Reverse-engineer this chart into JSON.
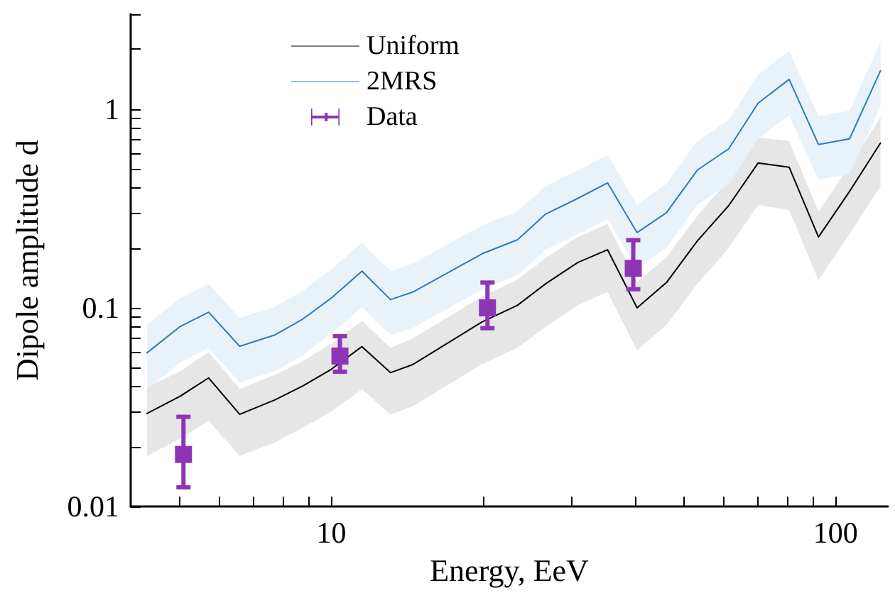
{
  "chart_data": {
    "type": "line",
    "xlabel": "Energy, EeV",
    "ylabel": "Dipole amplitude d",
    "log": "xy",
    "xlim": [
      4,
      127
    ],
    "ylim": [
      0.01,
      3
    ],
    "xticks": [
      {
        "value": 5,
        "label": null
      },
      {
        "value": 6,
        "label": null
      },
      {
        "value": 7,
        "label": null
      },
      {
        "value": 8,
        "label": null
      },
      {
        "value": 9,
        "label": null
      },
      10,
      {
        "value": 20,
        "label": null
      },
      {
        "value": 30,
        "label": null
      },
      {
        "value": 40,
        "label": null
      },
      {
        "value": 50,
        "label": null
      },
      {
        "value": 60,
        "label": null
      },
      {
        "value": 70,
        "label": null
      },
      {
        "value": 80,
        "label": null
      },
      {
        "value": 90,
        "label": null
      },
      100
    ],
    "yticks": [
      0.01,
      {
        "value": 0.02,
        "label": null
      },
      {
        "value": 0.03,
        "label": null
      },
      {
        "value": 0.04,
        "label": null
      },
      {
        "value": 0.05,
        "label": null
      },
      {
        "value": 0.06,
        "label": null
      },
      {
        "value": 0.07,
        "label": null
      },
      {
        "value": 0.08,
        "label": null
      },
      {
        "value": 0.09,
        "label": null
      },
      0.1,
      {
        "value": 0.2,
        "label": null
      },
      {
        "value": 0.3,
        "label": null
      },
      {
        "value": 0.4,
        "label": null
      },
      {
        "value": 0.5,
        "label": null
      },
      {
        "value": 0.6,
        "label": null
      },
      {
        "value": 0.7,
        "label": null
      },
      {
        "value": 0.8,
        "label": null
      },
      {
        "value": 0.9,
        "label": null
      },
      1,
      {
        "value": 2,
        "label": null
      },
      {
        "value": 3,
        "label": null
      }
    ],
    "x": [
      4.31,
      5.02,
      5.71,
      6.58,
      7.72,
      8.79,
      10,
      11.5,
      13.1,
      14.5,
      19.9,
      23.4,
      26.6,
      30.8,
      35.3,
      40.4,
      46.2,
      53.2,
      61.4,
      70.2,
      80.9,
      92.5,
      106.6,
      122.8
    ],
    "grid": false,
    "legend": "top left",
    "marker": "none",
    "line_style": "solid",
    "series": [
      {
        "name": "Uniform",
        "color": "#000000",
        "values": [
          0.0294,
          0.036,
          0.0444,
          0.0291,
          0.0344,
          0.0405,
          0.0491,
          0.0638,
          0.0472,
          0.0518,
          0.0849,
          0.103,
          0.132,
          0.169,
          0.196,
          0.1,
          0.134,
          0.217,
          0.327,
          0.535,
          0.51,
          0.227,
          0.385,
          0.675
        ],
        "upper": [
          0.04,
          0.048,
          0.06,
          0.039,
          0.046,
          0.054,
          0.066,
          0.086,
          0.063,
          0.07,
          0.114,
          0.139,
          0.178,
          0.227,
          0.264,
          0.135,
          0.18,
          0.29,
          0.44,
          0.72,
          0.69,
          0.305,
          0.52,
          0.91
        ],
        "lower": [
          0.018,
          0.022,
          0.027,
          0.018,
          0.021,
          0.025,
          0.03,
          0.039,
          0.029,
          0.032,
          0.052,
          0.063,
          0.08,
          0.103,
          0.12,
          0.061,
          0.082,
          0.132,
          0.2,
          0.33,
          0.31,
          0.138,
          0.235,
          0.41
        ]
      },
      {
        "name": "2MRS",
        "color": "#2b7bbf",
        "values": [
          0.0594,
          0.0807,
          0.095,
          0.064,
          0.073,
          0.088,
          0.112,
          0.153,
          0.11,
          0.12,
          0.187,
          0.22,
          0.296,
          0.355,
          0.425,
          0.239,
          0.301,
          0.493,
          0.631,
          1.07,
          1.41,
          0.663,
          0.708,
          1.56
        ],
        "upper": [
          0.083,
          0.112,
          0.132,
          0.089,
          0.101,
          0.122,
          0.156,
          0.213,
          0.153,
          0.167,
          0.26,
          0.306,
          0.41,
          0.49,
          0.59,
          0.33,
          0.42,
          0.69,
          0.88,
          1.49,
          1.96,
          0.92,
          0.98,
          2.17
        ],
        "lower": [
          0.039,
          0.053,
          0.063,
          0.042,
          0.048,
          0.058,
          0.074,
          0.101,
          0.073,
          0.079,
          0.124,
          0.146,
          0.196,
          0.235,
          0.28,
          0.158,
          0.2,
          0.33,
          0.42,
          0.71,
          0.93,
          0.44,
          0.47,
          1.03
        ]
      },
      {
        "name": "Data",
        "type": "scatter",
        "marker": "square",
        "color": "#8e35b5",
        "x": [
          5.09,
          10.4,
          20.4,
          39.7
        ],
        "values": [
          0.0183,
          0.0572,
          0.1,
          0.158
        ],
        "errors": [
          [
            0.0125,
            0.0283
          ],
          [
            0.0477,
            0.072
          ],
          [
            0.079,
            0.134
          ],
          [
            0.124,
            0.219
          ]
        ]
      }
    ]
  }
}
